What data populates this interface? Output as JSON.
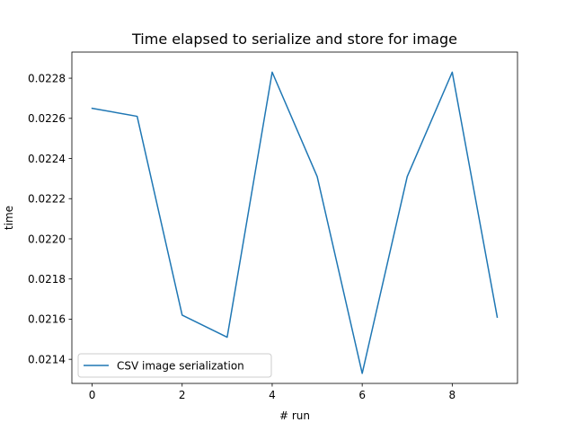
{
  "chart_data": {
    "type": "line",
    "title": "Time elapsed to serialize and store for image",
    "xlabel": "# run",
    "ylabel": "time",
    "xlim": [
      -0.45,
      9.45
    ],
    "ylim": [
      0.02128,
      0.02293
    ],
    "x_ticks": [
      0,
      2,
      4,
      6,
      8
    ],
    "x_tick_labels": [
      "0",
      "2",
      "4",
      "6",
      "8"
    ],
    "y_ticks": [
      0.0214,
      0.0216,
      0.0218,
      0.022,
      0.0222,
      0.0224,
      0.0226,
      0.0228
    ],
    "y_tick_labels": [
      "0.0214",
      "0.0216",
      "0.0218",
      "0.0220",
      "0.0222",
      "0.0224",
      "0.0226",
      "0.0228"
    ],
    "grid": false,
    "legend_position": "lower-left",
    "series": [
      {
        "name": "CSV image serialization",
        "color": "#1f77b4",
        "x": [
          0,
          1,
          2,
          3,
          4,
          5,
          6,
          7,
          8,
          9
        ],
        "y": [
          0.02265,
          0.02261,
          0.02162,
          0.02151,
          0.02283,
          0.02231,
          0.02133,
          0.02231,
          0.02283,
          0.02161
        ]
      }
    ]
  }
}
